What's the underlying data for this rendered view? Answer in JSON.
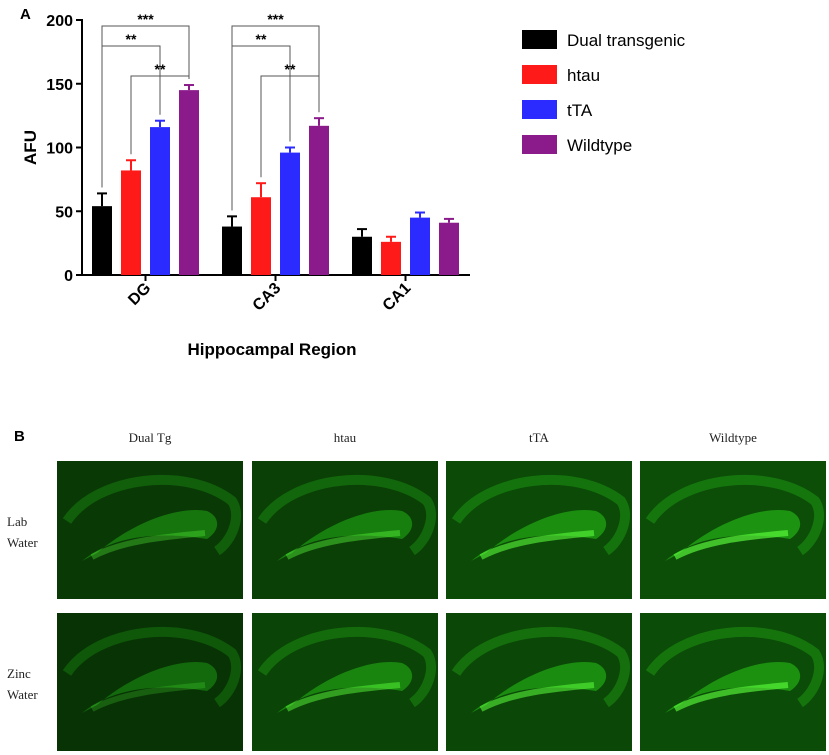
{
  "panel_a": {
    "letter": "A",
    "chart_data": {
      "type": "bar",
      "categories": [
        "DG",
        "CA3",
        "CA1"
      ],
      "series": [
        {
          "name": "Dual transgenic",
          "color": "#000000",
          "values": [
            54,
            38,
            30
          ],
          "errors": [
            10,
            8,
            6
          ]
        },
        {
          "name": "htau",
          "color": "#ff1a1a",
          "values": [
            82,
            61,
            26
          ],
          "errors": [
            8,
            11,
            4
          ]
        },
        {
          "name": "tTA",
          "color": "#2b2bff",
          "values": [
            116,
            96,
            45
          ],
          "errors": [
            5,
            4,
            4
          ]
        },
        {
          "name": "Wildtype",
          "color": "#8b1a8b",
          "values": [
            145,
            117,
            41
          ],
          "errors": [
            4,
            6,
            3
          ]
        }
      ],
      "xlabel": "Hippocampal Region",
      "ylabel": "AFU",
      "ylim": [
        0,
        200
      ],
      "yticks": [
        0,
        50,
        100,
        150,
        200
      ],
      "grid": false,
      "legend_position": "right",
      "significance": [
        {
          "category": "DG",
          "from": 0,
          "to": 2,
          "label": "**"
        },
        {
          "category": "DG",
          "from": 0,
          "to": 3,
          "label": "***"
        },
        {
          "category": "DG",
          "from": 1,
          "to": 3,
          "label": "**"
        },
        {
          "category": "CA3",
          "from": 0,
          "to": 2,
          "label": "**"
        },
        {
          "category": "CA3",
          "from": 0,
          "to": 3,
          "label": "***"
        },
        {
          "category": "CA3",
          "from": 1,
          "to": 3,
          "label": "**"
        }
      ]
    }
  },
  "panel_b": {
    "letter": "B",
    "columns": [
      "Dual Tg",
      "htau",
      "tTA",
      "Wildtype"
    ],
    "rows": [
      {
        "line1": "Lab",
        "line2": "Water"
      },
      {
        "line1": "Zinc",
        "line2": "Water"
      }
    ],
    "image_fill_color": "#1e9a12",
    "image_brightness": [
      [
        0.45,
        0.6,
        0.85,
        0.95
      ],
      [
        0.3,
        0.7,
        0.8,
        0.9
      ]
    ]
  }
}
